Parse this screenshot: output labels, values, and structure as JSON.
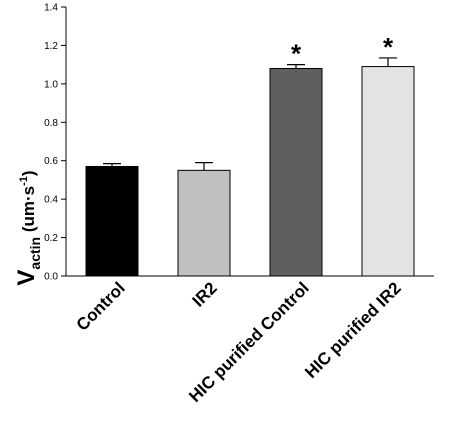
{
  "chart_data": {
    "type": "bar",
    "categories": [
      "Control",
      "IR2",
      "HIC purified Control",
      "HIC purified IR2"
    ],
    "values": [
      0.57,
      0.55,
      1.08,
      1.09
    ],
    "errors": [
      0.015,
      0.04,
      0.02,
      0.045
    ],
    "significance": [
      "",
      "",
      "*",
      "*"
    ],
    "bar_colors": [
      "#000000",
      "#c0c0c0",
      "#5f5f5f",
      "#e4e4e4"
    ],
    "ylabel": {
      "main": "V",
      "subscript": "actin",
      "unit_open": " (um·s",
      "unit_power": "-1",
      "unit_close": ")"
    },
    "ylim": [
      0,
      1.4
    ],
    "yticks": [
      "0.0",
      "0.2",
      "0.4",
      "0.6",
      "0.8",
      "1.0",
      "1.2",
      "1.4"
    ],
    "grid": false
  }
}
